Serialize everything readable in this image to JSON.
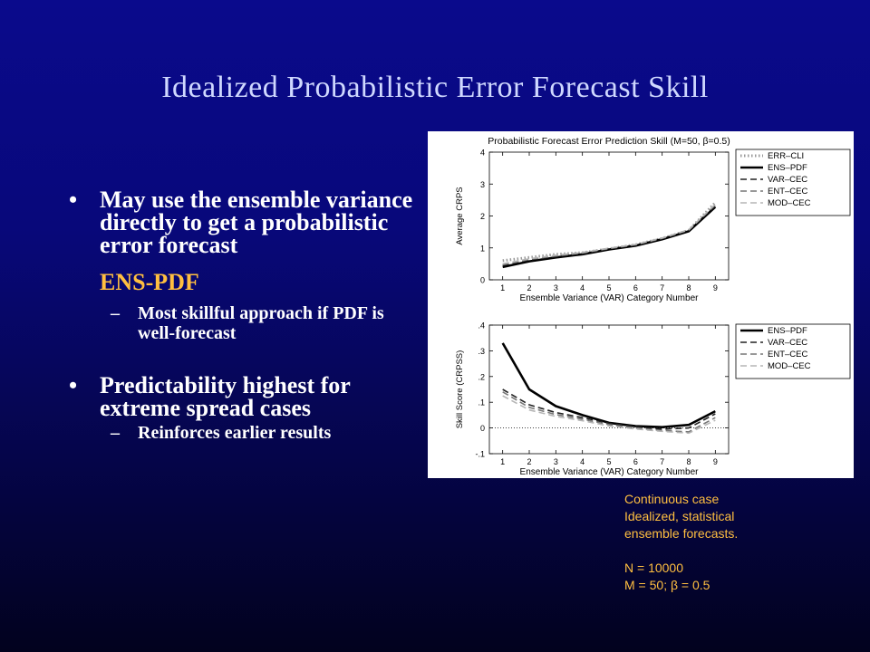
{
  "slide": {
    "title": "Idealized Probabilistic Error Forecast Skill"
  },
  "bullets": [
    {
      "text": "May use the ensemble variance directly to get a probabilistic error forecast",
      "highlight": "ENS-PDF",
      "sub": [
        "Most skillful approach if PDF is well-forecast"
      ]
    },
    {
      "text": "Predictability highest for extreme spread cases",
      "highlight": "",
      "sub": [
        "Reinforces earlier results"
      ]
    }
  ],
  "markers": {
    "bullet": "•",
    "dash": "–"
  },
  "caption": {
    "lines": [
      "Continuous case",
      "Idealized, statistical",
      "ensemble forecasts.",
      "",
      "N = 10000",
      "M = 50; β = 0.5"
    ]
  },
  "colors": {
    "title": "#cfd8ff",
    "highlight": "#ffbf40",
    "caption": "#ffbf40"
  },
  "chart_data": [
    {
      "type": "line",
      "title": "Probabilistic Forecast Error Prediction Skill (M=50, β=0.5)",
      "xlabel": "Ensemble Variance (VAR) Category Number",
      "ylabel": "Average CRPS",
      "x": [
        1,
        2,
        3,
        4,
        5,
        6,
        7,
        8,
        9
      ],
      "xlim": [
        0.5,
        9.5
      ],
      "ylim": [
        0,
        4
      ],
      "yticks": [
        0,
        1,
        2,
        3,
        4
      ],
      "legend_position": "top-right-outside",
      "series": [
        {
          "name": "ERR–CLI",
          "values": [
            0.6,
            0.7,
            0.8,
            0.85,
            0.97,
            1.1,
            1.3,
            1.55,
            2.42
          ],
          "style": "dotted",
          "color": "#9a9a9a",
          "width": 3
        },
        {
          "name": "ENS–PDF",
          "values": [
            0.4,
            0.58,
            0.7,
            0.8,
            0.95,
            1.07,
            1.27,
            1.52,
            2.28
          ],
          "style": "solid",
          "color": "#000000",
          "width": 2.6
        },
        {
          "name": "VAR–CEC",
          "values": [
            0.45,
            0.62,
            0.73,
            0.83,
            0.97,
            1.09,
            1.29,
            1.55,
            2.32
          ],
          "style": "dashed",
          "color": "#222222",
          "width": 1.6
        },
        {
          "name": "ENT–CEC",
          "values": [
            0.47,
            0.64,
            0.75,
            0.84,
            0.98,
            1.1,
            1.3,
            1.56,
            2.35
          ],
          "style": "dashed",
          "color": "#777777",
          "width": 1.6
        },
        {
          "name": "MOD–CEC",
          "values": [
            0.5,
            0.66,
            0.77,
            0.86,
            0.99,
            1.11,
            1.31,
            1.57,
            2.37
          ],
          "style": "dashed",
          "color": "#b5b5b5",
          "width": 1.6
        }
      ]
    },
    {
      "type": "line",
      "title": "",
      "xlabel": "Ensemble Variance (VAR) Category Number",
      "ylabel": "Skill Score (CRPSS)",
      "x": [
        1,
        2,
        3,
        4,
        5,
        6,
        7,
        8,
        9
      ],
      "xlim": [
        0.5,
        9.5
      ],
      "ylim": [
        -0.1,
        0.4
      ],
      "yticks": [
        -0.1,
        0,
        0.1,
        0.2,
        0.3,
        0.4
      ],
      "legend_position": "top-right-outside",
      "reference_line": 0,
      "series": [
        {
          "name": "ENS–PDF",
          "values": [
            0.33,
            0.15,
            0.085,
            0.05,
            0.02,
            0.007,
            0.003,
            0.012,
            0.065
          ],
          "style": "solid",
          "color": "#000000",
          "width": 2.6
        },
        {
          "name": "VAR–CEC",
          "values": [
            0.15,
            0.09,
            0.06,
            0.04,
            0.018,
            0.005,
            -0.005,
            0.0,
            0.055
          ],
          "style": "dashed",
          "color": "#222222",
          "width": 1.6
        },
        {
          "name": "ENT–CEC",
          "values": [
            0.14,
            0.08,
            0.052,
            0.034,
            0.013,
            0.0,
            -0.01,
            -0.015,
            0.04
          ],
          "style": "dashed",
          "color": "#777777",
          "width": 1.6
        },
        {
          "name": "MOD–CEC",
          "values": [
            0.125,
            0.07,
            0.045,
            0.028,
            0.008,
            -0.004,
            -0.013,
            -0.02,
            0.03
          ],
          "style": "dashed",
          "color": "#b5b5b5",
          "width": 1.6
        }
      ]
    }
  ]
}
